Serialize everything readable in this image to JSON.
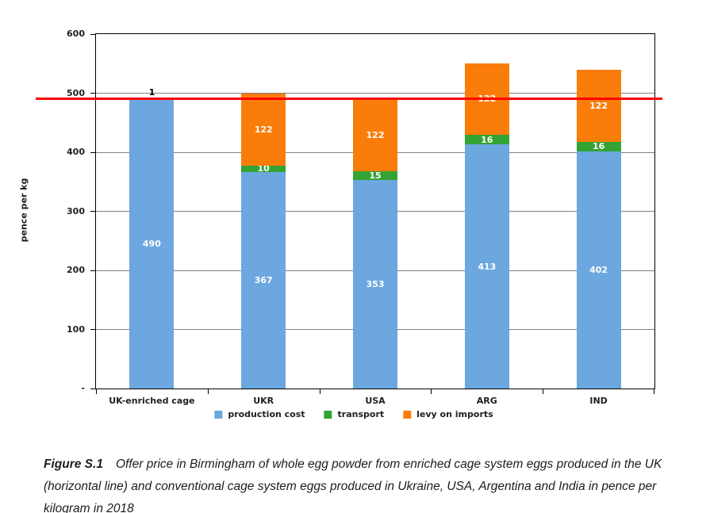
{
  "figure_caption": {
    "label": "Figure S.1",
    "text": "Offer price in Birmingham of whole egg powder from enriched cage system eggs produced in the UK (horizontal line) and conventional cage system eggs produced in Ukraine, USA, Argentina and India in pence per kilogram in 2018"
  },
  "chart_data": {
    "type": "bar",
    "stacked": true,
    "title": "",
    "xlabel": "",
    "ylabel": "pence per kg",
    "ylim": [
      0,
      600
    ],
    "yticks": [
      0,
      100,
      200,
      300,
      400,
      500,
      600
    ],
    "ytick_labels": [
      "-",
      "100",
      "200",
      "300",
      "400",
      "500",
      "600"
    ],
    "categories": [
      "UK-enriched cage",
      "UKR",
      "USA",
      "ARG",
      "IND"
    ],
    "series": [
      {
        "name": "production cost",
        "color": "#6CA7DF",
        "values": [
          490,
          367,
          353,
          413,
          402
        ]
      },
      {
        "name": "transport",
        "color": "#33A333",
        "values": [
          0,
          10,
          15,
          16,
          16
        ]
      },
      {
        "name": "levy on imports",
        "color": "#FA7D0A",
        "values": [
          0,
          122,
          122,
          122,
          122
        ]
      }
    ],
    "reference_line": {
      "value": 490,
      "label": "1",
      "color": "#FF0000"
    },
    "grid": true,
    "gridline_color": "#808080",
    "axis_color": "#000000",
    "legend_position": "bottom"
  }
}
